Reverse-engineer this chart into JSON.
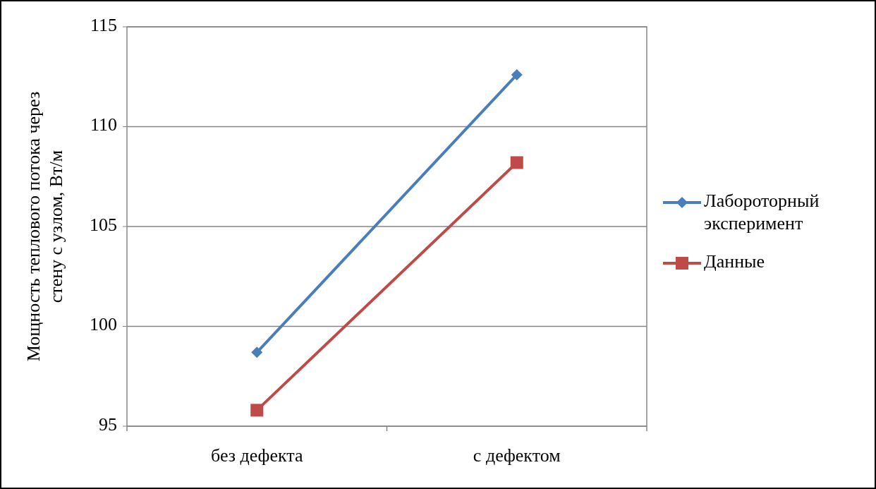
{
  "chart_data": {
    "type": "line",
    "ylabel": "Мощность теплового потока через стену с узлом,  Вт/м",
    "categories": [
      "без дефекта",
      "с дефектом"
    ],
    "series": [
      {
        "name": "Лабороторный эксперимент",
        "color": "#4a7ebb",
        "values": [
          98.7,
          112.6
        ],
        "marker": "diamond"
      },
      {
        "name": "Данные",
        "color": "#be4b48",
        "values": [
          95.8,
          108.2
        ],
        "marker": "square"
      }
    ],
    "ylim": [
      95,
      115
    ],
    "yticks": [
      95,
      100,
      105,
      110,
      115
    ],
    "grid": "y",
    "legend": "right"
  }
}
